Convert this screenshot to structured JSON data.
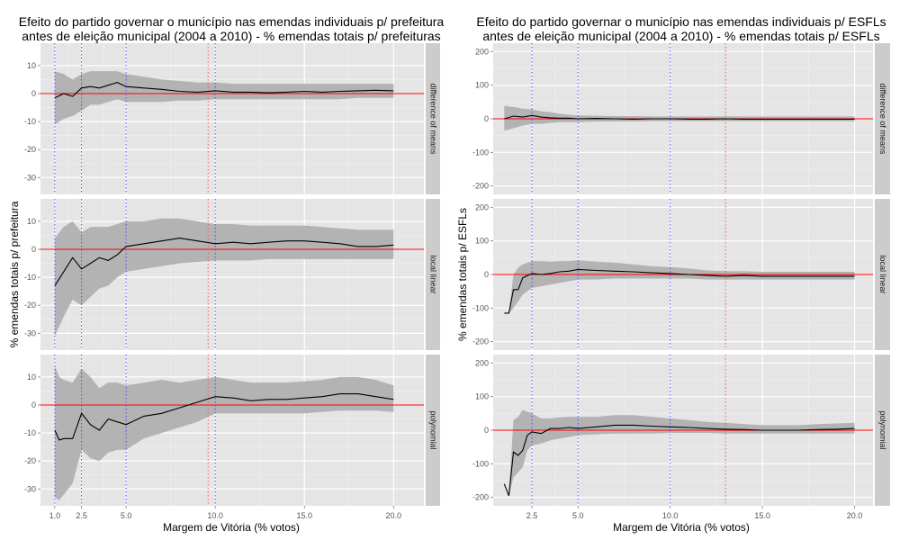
{
  "colors": {
    "panel_bg": "#e5e5e5",
    "grid_major": "#ffffff",
    "grid_minor": "#f0f0f0",
    "band": "#b3b3b3",
    "estimate_line": "#000000",
    "zero_line": "#ff0000",
    "vline_blue": "#4b4bff",
    "vline_red": "#ff5555",
    "strip_bg": "#cccccc"
  },
  "chart_data": [
    {
      "type": "line",
      "title_line1": "Efeito do partido governar o município nas emendas individuais p/ prefeitura",
      "title_line2": "antes de eleição municipal (2004 a 2010) - % emendas totais p/ prefeituras",
      "xlabel": "Margem de Vitória (% votos)",
      "ylabel": "% emendas totais p/ prefeitura",
      "xlim": [
        0.2,
        21.7
      ],
      "x_ticks": [
        1.0,
        2.5,
        5.0,
        10.0,
        15.0,
        20.0
      ],
      "x_tick_labels": [
        "1.0",
        "2.5",
        "5.0",
        "10.0",
        "15.0",
        "20.0"
      ],
      "ylim": [
        -36,
        18
      ],
      "y_ticks": [
        -30,
        -20,
        -10,
        0,
        10
      ],
      "y_tick_labels": [
        "-30",
        "-20",
        "-10",
        "0",
        "10"
      ],
      "vlines_blue": [
        1.0,
        2.5,
        5.0,
        10.0
      ],
      "vline_red": 9.6,
      "grid": true,
      "facets": [
        {
          "strip_label": "difference of means",
          "x": [
            1.0,
            1.5,
            2.0,
            2.5,
            3.0,
            3.5,
            4.0,
            4.5,
            5.0,
            6.0,
            7.0,
            8.0,
            9.0,
            10.0,
            11.0,
            12.0,
            13.0,
            14.0,
            15.0,
            16.0,
            17.0,
            18.0,
            19.0,
            20.0
          ],
          "y": [
            -1.5,
            0,
            -1,
            2,
            2.5,
            2,
            3,
            4,
            2.5,
            2,
            1.5,
            0.8,
            0.5,
            1,
            0.5,
            0.5,
            0.3,
            0.5,
            0.8,
            0.5,
            0.8,
            1,
            1.2,
            1
          ],
          "lower": [
            -11,
            -9,
            -8,
            -6,
            -4,
            -4,
            -3,
            -2,
            -3,
            -3,
            -3,
            -2.5,
            -2.5,
            -2,
            -2,
            -2,
            -2,
            -2,
            -2,
            -2,
            -2,
            -1.5,
            -1.5,
            -1.5
          ],
          "upper": [
            8,
            7,
            5,
            7,
            8,
            8,
            8,
            8,
            7,
            6,
            5,
            4.5,
            4,
            4,
            3.5,
            3.5,
            3.5,
            3.5,
            3.5,
            3.5,
            3.5,
            3.5,
            3.5,
            3.5
          ]
        },
        {
          "strip_label": "local linear",
          "x": [
            1.0,
            1.5,
            2.0,
            2.5,
            3.0,
            3.5,
            4.0,
            4.5,
            5.0,
            6.0,
            7.0,
            8.0,
            9.0,
            10.0,
            11.0,
            12.0,
            13.0,
            14.0,
            15.0,
            16.0,
            17.0,
            18.0,
            19.0,
            20.0
          ],
          "y": [
            -13,
            -8,
            -3,
            -7,
            -5,
            -3,
            -4,
            -2,
            1,
            2,
            3,
            4,
            3,
            2,
            2.5,
            2,
            2.5,
            3,
            3,
            2.5,
            2,
            1,
            1,
            1.5
          ],
          "lower": [
            -31,
            -24,
            -18,
            -20,
            -17,
            -14,
            -13,
            -10,
            -8,
            -7,
            -6,
            -5,
            -4.5,
            -4,
            -4,
            -4,
            -3.5,
            -3.5,
            -3.5,
            -3.5,
            -3.5,
            -3.5,
            -3.5,
            -3.5
          ],
          "upper": [
            4,
            8,
            10,
            6,
            8,
            8,
            8,
            9,
            10,
            10,
            11,
            11,
            10,
            9,
            9,
            8.5,
            8.5,
            8.5,
            8.5,
            8,
            7.5,
            7,
            7,
            7
          ]
        },
        {
          "strip_label": "polynomial",
          "x": [
            1.0,
            1.25,
            1.5,
            2.0,
            2.5,
            3.0,
            3.5,
            4.0,
            4.5,
            5.0,
            6.0,
            7.0,
            8.0,
            9.0,
            10.0,
            11.0,
            12.0,
            13.0,
            14.0,
            15.0,
            16.0,
            17.0,
            18.0,
            19.0,
            20.0
          ],
          "y": [
            -9,
            -12.5,
            -12,
            -12,
            -3,
            -7,
            -9,
            -5,
            -6,
            -7,
            -4,
            -3,
            -1,
            1,
            3,
            2.5,
            1.5,
            2,
            2,
            2.5,
            3,
            4,
            4,
            3,
            2
          ],
          "lower": [
            -33,
            -34,
            -32,
            -28,
            -16,
            -19,
            -20,
            -17,
            -16,
            -16,
            -12,
            -10,
            -8,
            -6,
            -3,
            -3,
            -3,
            -3,
            -3,
            -3,
            -2.5,
            -2,
            -2,
            -2,
            -2.5
          ],
          "upper": [
            14,
            10,
            9,
            8,
            13,
            10,
            6,
            8,
            8,
            7,
            8,
            9,
            8,
            9,
            10,
            9,
            8,
            8,
            8,
            8.5,
            9,
            10,
            10,
            9,
            7
          ]
        }
      ]
    },
    {
      "type": "line",
      "title_line1": "Efeito do partido governar o município nas emendas individuais p/ ESFLs",
      "title_line2": "antes de eleição municipal (2004 a 2010) - % emendas totais p/ ESFLs",
      "xlabel": "Margem de Vitória (% votos)",
      "ylabel": "% emendas totais p/ ESFLs",
      "xlim": [
        0.4,
        21.0
      ],
      "x_ticks": [
        2.5,
        5.0,
        10.0,
        15.0,
        20.0
      ],
      "x_tick_labels": [
        "2.5",
        "5.0",
        "10.0",
        "15.0",
        "20.0"
      ],
      "ylim": [
        -225,
        225
      ],
      "y_ticks": [
        -200,
        -100,
        0,
        100,
        200
      ],
      "y_tick_labels": [
        "-200",
        "-100",
        "0",
        "100",
        "200"
      ],
      "vlines_blue": [
        2.5,
        5.0,
        10.0
      ],
      "vline_red": 13.0,
      "grid": true,
      "facets": [
        {
          "strip_label": "difference of means",
          "x": [
            1.0,
            1.5,
            2.0,
            2.5,
            3.0,
            3.5,
            4.0,
            4.5,
            5.0,
            6.0,
            7.0,
            8.0,
            9.0,
            10.0,
            11.0,
            12.0,
            13.0,
            14.0,
            15.0,
            16.0,
            17.0,
            18.0,
            19.0,
            20.0
          ],
          "y": [
            0,
            8,
            5,
            10,
            5,
            3,
            2,
            2,
            0,
            1,
            0,
            -1,
            0,
            0,
            -1,
            -1,
            0,
            -1,
            -1,
            -1,
            -1,
            -1,
            -1,
            -1
          ],
          "lower": [
            -35,
            -28,
            -20,
            -15,
            -15,
            -12,
            -10,
            -10,
            -10,
            -8,
            -8,
            -8,
            -7,
            -7,
            -7,
            -7,
            -7,
            -7,
            -7,
            -7,
            -7,
            -7,
            -7,
            -7
          ],
          "upper": [
            38,
            35,
            30,
            28,
            22,
            20,
            15,
            12,
            10,
            9,
            8,
            8,
            7,
            7,
            7,
            7,
            7,
            7,
            7,
            7,
            7,
            7,
            7,
            7
          ]
        },
        {
          "strip_label": "local linear",
          "x": [
            1.0,
            1.25,
            1.5,
            1.75,
            2.0,
            2.5,
            3.0,
            3.5,
            4.0,
            4.5,
            5.0,
            6.0,
            7.0,
            8.0,
            9.0,
            10.0,
            11.0,
            12.0,
            13.0,
            14.0,
            15.0,
            16.0,
            17.0,
            18.0,
            19.0,
            20.0
          ],
          "y": [
            -115,
            -115,
            -45,
            -45,
            -10,
            3,
            0,
            3,
            8,
            10,
            15,
            12,
            10,
            8,
            5,
            3,
            0,
            -3,
            -5,
            -3,
            -5,
            -5,
            -5,
            -5,
            -5,
            -5
          ],
          "lower": [
            -115,
            -115,
            -100,
            -80,
            -60,
            -40,
            -35,
            -30,
            -25,
            -20,
            -15,
            -15,
            -12,
            -12,
            -12,
            -12,
            -12,
            -15,
            -15,
            -15,
            -15,
            -15,
            -15,
            -15,
            -15,
            -15
          ],
          "upper": [
            -115,
            -115,
            0,
            20,
            30,
            40,
            40,
            38,
            40,
            40,
            42,
            38,
            35,
            30,
            25,
            22,
            18,
            12,
            10,
            10,
            8,
            8,
            8,
            8,
            8,
            8
          ]
        },
        {
          "strip_label": "polynomial",
          "x": [
            1.0,
            1.25,
            1.5,
            1.75,
            2.0,
            2.25,
            2.5,
            3.0,
            3.5,
            4.0,
            4.5,
            5.0,
            6.0,
            7.0,
            8.0,
            9.0,
            10.0,
            11.0,
            12.0,
            13.0,
            14.0,
            15.0,
            16.0,
            17.0,
            18.0,
            19.0,
            20.0
          ],
          "y": [
            -160,
            -195,
            -65,
            -75,
            -60,
            -15,
            -5,
            -10,
            5,
            5,
            8,
            5,
            10,
            15,
            15,
            12,
            10,
            8,
            5,
            3,
            2,
            0,
            0,
            0,
            2,
            3,
            5
          ],
          "lower": [
            -160,
            -195,
            -140,
            -125,
            -110,
            -60,
            -45,
            -40,
            -30,
            -25,
            -20,
            -15,
            -12,
            -10,
            -10,
            -10,
            -8,
            -8,
            -8,
            -10,
            -10,
            -10,
            -10,
            -10,
            -10,
            -10,
            -10
          ],
          "upper": [
            -160,
            -195,
            30,
            40,
            60,
            55,
            50,
            35,
            35,
            38,
            40,
            40,
            40,
            45,
            45,
            40,
            35,
            30,
            25,
            22,
            18,
            15,
            15,
            15,
            18,
            20,
            22
          ]
        }
      ]
    }
  ]
}
